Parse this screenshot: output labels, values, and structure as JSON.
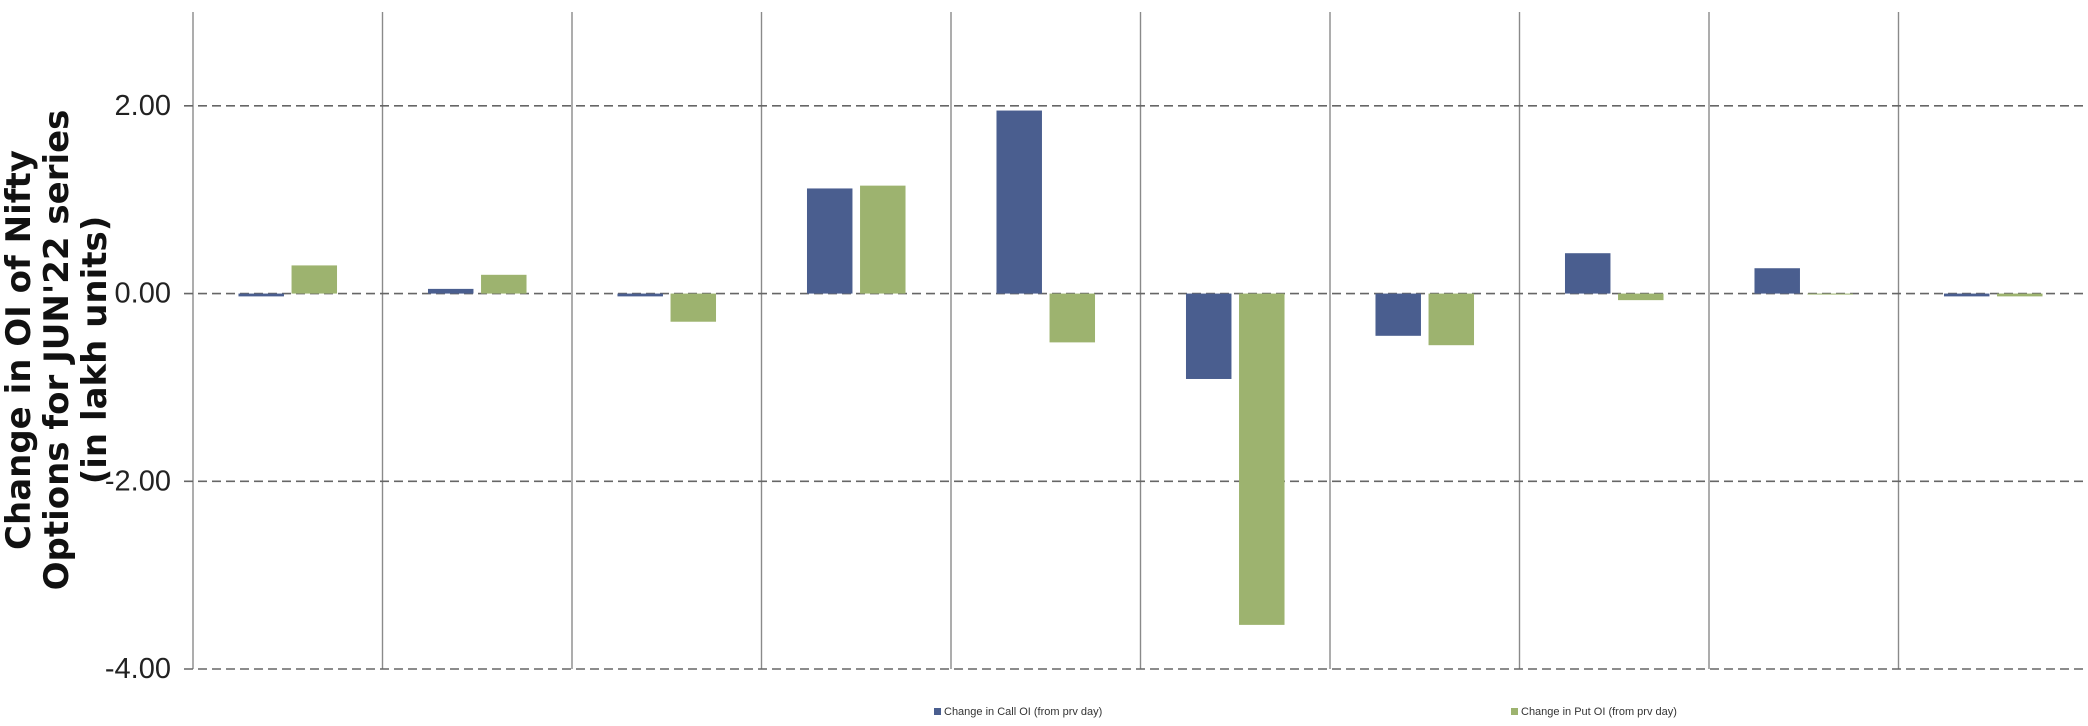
{
  "chart_data": {
    "type": "bar",
    "ylabel": [
      "Change in OI of Nifty",
      "Options for JUN'22 series",
      "(in lakh units)"
    ],
    "ylim": [
      -4,
      3
    ],
    "yticks": [
      2,
      0,
      -2,
      -4
    ],
    "ytick_labels": [
      "2.00",
      "0.00",
      "-2.00",
      "-4.00"
    ],
    "grid": true,
    "legend_position": "bottom",
    "series": [
      {
        "name": "Change in Call OI (from prv day)",
        "color": "#4A5E8F",
        "values": [
          -0.03,
          0.05,
          -0.03,
          1.12,
          1.95,
          -0.91,
          -0.45,
          0.43,
          0.27,
          -0.03
        ]
      },
      {
        "name": "Change in Put OI (from prv day)",
        "color": "#9DB36F",
        "values": [
          0.3,
          0.2,
          -0.3,
          1.15,
          -0.52,
          -3.53,
          -0.55,
          -0.07,
          -0.01,
          -0.03
        ]
      }
    ]
  }
}
